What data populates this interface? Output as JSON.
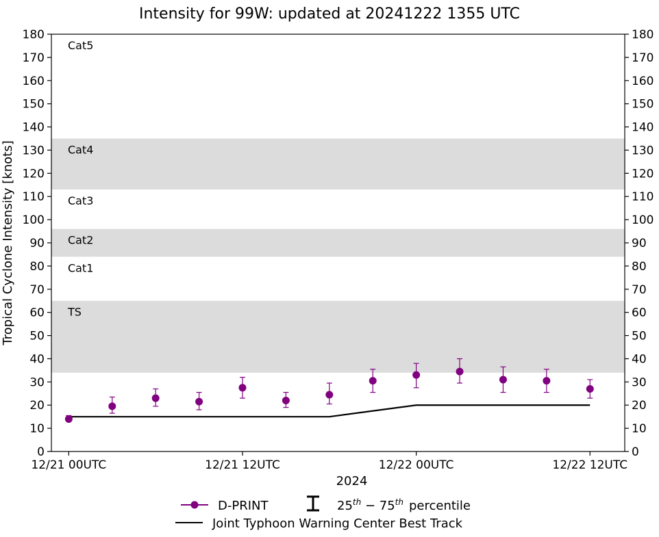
{
  "chart_data": {
    "type": "scatter",
    "title": "Intensity for 99W: updated at 20241222 1355 UTC",
    "xlabel": "2024",
    "ylabel": "Tropical Cyclone Intensity [knots]",
    "ylim": [
      0,
      180
    ],
    "yticks": [
      0,
      10,
      20,
      30,
      40,
      50,
      60,
      70,
      80,
      90,
      100,
      110,
      120,
      130,
      140,
      150,
      160,
      170,
      180
    ],
    "xlim_hours": [
      -1.2,
      38.4
    ],
    "xticks": [
      {
        "hour": 0,
        "label": "12/21 00UTC"
      },
      {
        "hour": 12,
        "label": "12/21 12UTC"
      },
      {
        "hour": 24,
        "label": "12/22 00UTC"
      },
      {
        "hour": 36,
        "label": "12/22 12UTC"
      }
    ],
    "bands": [
      {
        "label": "Cat5",
        "from": 137,
        "to": 180,
        "shaded": false
      },
      {
        "label": "Cat4",
        "from": 113,
        "to": 135,
        "shaded": true
      },
      {
        "label": "Cat3",
        "from": 96,
        "to": 113,
        "shaded": false
      },
      {
        "label": "Cat2",
        "from": 84,
        "to": 96,
        "shaded": true
      },
      {
        "label": "Cat1",
        "from": 64,
        "to": 84,
        "shaded": false
      },
      {
        "label": "TS",
        "from": 34,
        "to": 65,
        "shaded": true
      }
    ],
    "series": [
      {
        "name": "D-PRINT",
        "color": "#800080",
        "points": [
          {
            "hour": 0,
            "y": 14,
            "lo": 13,
            "hi": 15.5
          },
          {
            "hour": 3,
            "y": 19.5,
            "lo": 16.5,
            "hi": 23.5
          },
          {
            "hour": 6,
            "y": 23,
            "lo": 19.5,
            "hi": 27
          },
          {
            "hour": 9,
            "y": 21.5,
            "lo": 18,
            "hi": 25.5
          },
          {
            "hour": 12,
            "y": 27.5,
            "lo": 23,
            "hi": 32
          },
          {
            "hour": 15,
            "y": 22,
            "lo": 19,
            "hi": 25.5
          },
          {
            "hour": 18,
            "y": 24.5,
            "lo": 20.5,
            "hi": 29.5
          },
          {
            "hour": 21,
            "y": 30.5,
            "lo": 25.5,
            "hi": 35.5
          },
          {
            "hour": 24,
            "y": 33,
            "lo": 27.5,
            "hi": 38
          },
          {
            "hour": 27,
            "y": 34.5,
            "lo": 29.5,
            "hi": 40
          },
          {
            "hour": 30,
            "y": 31,
            "lo": 25.5,
            "hi": 36.5
          },
          {
            "hour": 33,
            "y": 30.5,
            "lo": 25.5,
            "hi": 35.5
          },
          {
            "hour": 36,
            "y": 27,
            "lo": 23,
            "hi": 31
          }
        ]
      },
      {
        "name": "Joint Typhoon Warning Center Best Track",
        "color": "#000000",
        "points": [
          {
            "hour": 0,
            "y": 15
          },
          {
            "hour": 18,
            "y": 15
          },
          {
            "hour": 24,
            "y": 20
          },
          {
            "hour": 36,
            "y": 20
          }
        ]
      }
    ],
    "legend": {
      "placement": "bottom-center",
      "dprint_label": "D-PRINT",
      "percentile_label": "percentile",
      "percentile_low": "25",
      "percentile_high": "75",
      "percentile_sup": "th",
      "best_track_label": "Joint Typhoon Warning Center Best Track"
    },
    "grid": false
  }
}
